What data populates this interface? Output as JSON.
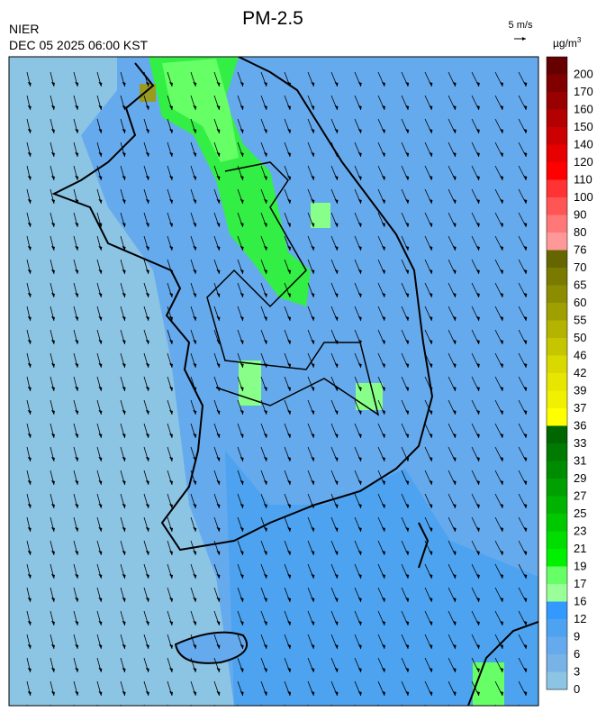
{
  "header": {
    "title": "PM-2.5",
    "agency": "NIER",
    "datetime": "DEC 05 2025 06:00 KST",
    "wind_scale": "5 m/s"
  },
  "legend": {
    "unit": "µg/m",
    "unit_power": "3",
    "labels": [
      200,
      170,
      160,
      150,
      140,
      120,
      110,
      100,
      90,
      80,
      76,
      70,
      65,
      60,
      55,
      50,
      46,
      42,
      39,
      37,
      36,
      33,
      31,
      29,
      27,
      25,
      23,
      21,
      19,
      17,
      16,
      12,
      9,
      6,
      3,
      0
    ],
    "colors": [
      "#660000",
      "#800000",
      "#990000",
      "#b30000",
      "#cc0000",
      "#e60000",
      "#ff0000",
      "#ff3333",
      "#ff5555",
      "#ff7777",
      "#ff9999",
      "#666600",
      "#7a7a00",
      "#8c8c00",
      "#9f9f00",
      "#b3b300",
      "#c6c600",
      "#d9d900",
      "#e6e600",
      "#f0f000",
      "#ffff00",
      "#006600",
      "#007a00",
      "#008c00",
      "#00a000",
      "#00b300",
      "#00c800",
      "#00dd00",
      "#00f000",
      "#66ff66",
      "#99ff99",
      "#3399ff",
      "#4da3f0",
      "#66aaee",
      "#77b3e6",
      "#8cc4e4"
    ]
  }
}
